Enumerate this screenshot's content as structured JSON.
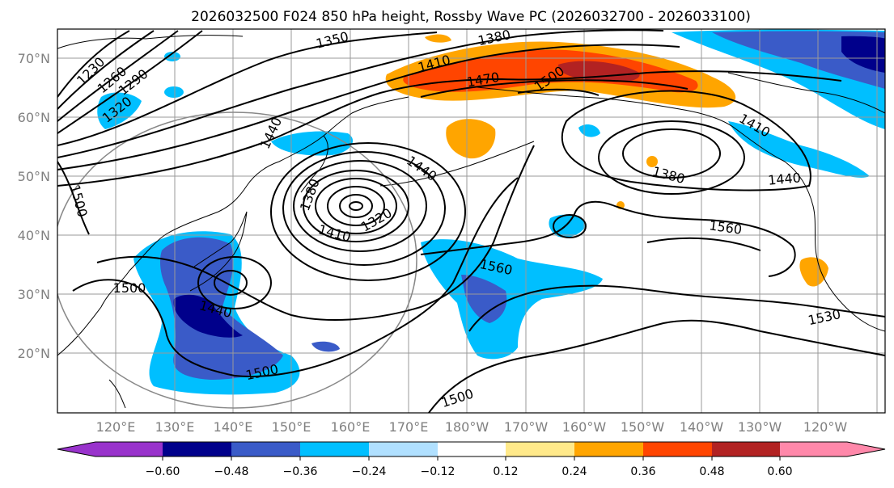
{
  "title": "2026032500 F024 850 hPa height, Rossby Wave PC (2026032700 - 2026033100)",
  "lat_labels": [
    "70°N",
    "60°N",
    "50°N",
    "40°N",
    "30°N",
    "20°N"
  ],
  "lon_labels": [
    "120°E",
    "130°E",
    "140°E",
    "150°E",
    "160°E",
    "170°E",
    "180°W",
    "170°W",
    "160°W",
    "150°W",
    "140°W",
    "130°W",
    "120°W"
  ],
  "colorbar": {
    "ticks": [
      "−0.60",
      "−0.48",
      "−0.36",
      "−0.24",
      "−0.12",
      "0.12",
      "0.24",
      "0.36",
      "0.48",
      "0.60"
    ],
    "colors": [
      "#9933cc",
      "#00008b",
      "#3a5bc8",
      "#00bfff",
      "#b0e0ff",
      "#ffffff",
      "#ffe98a",
      "#ffa500",
      "#ff4500",
      "#b22222",
      "#ff88aa"
    ]
  },
  "contour_labels": [
    "1350",
    "1380",
    "1230",
    "1260",
    "1290",
    "1320",
    "1410",
    "1470",
    "1500",
    "1440",
    "1440",
    "1500",
    "1380",
    "1410",
    "1320",
    "1410",
    "1380",
    "1440",
    "1560",
    "1560",
    "1500",
    "1440",
    "1530",
    "1500",
    "1500"
  ]
}
